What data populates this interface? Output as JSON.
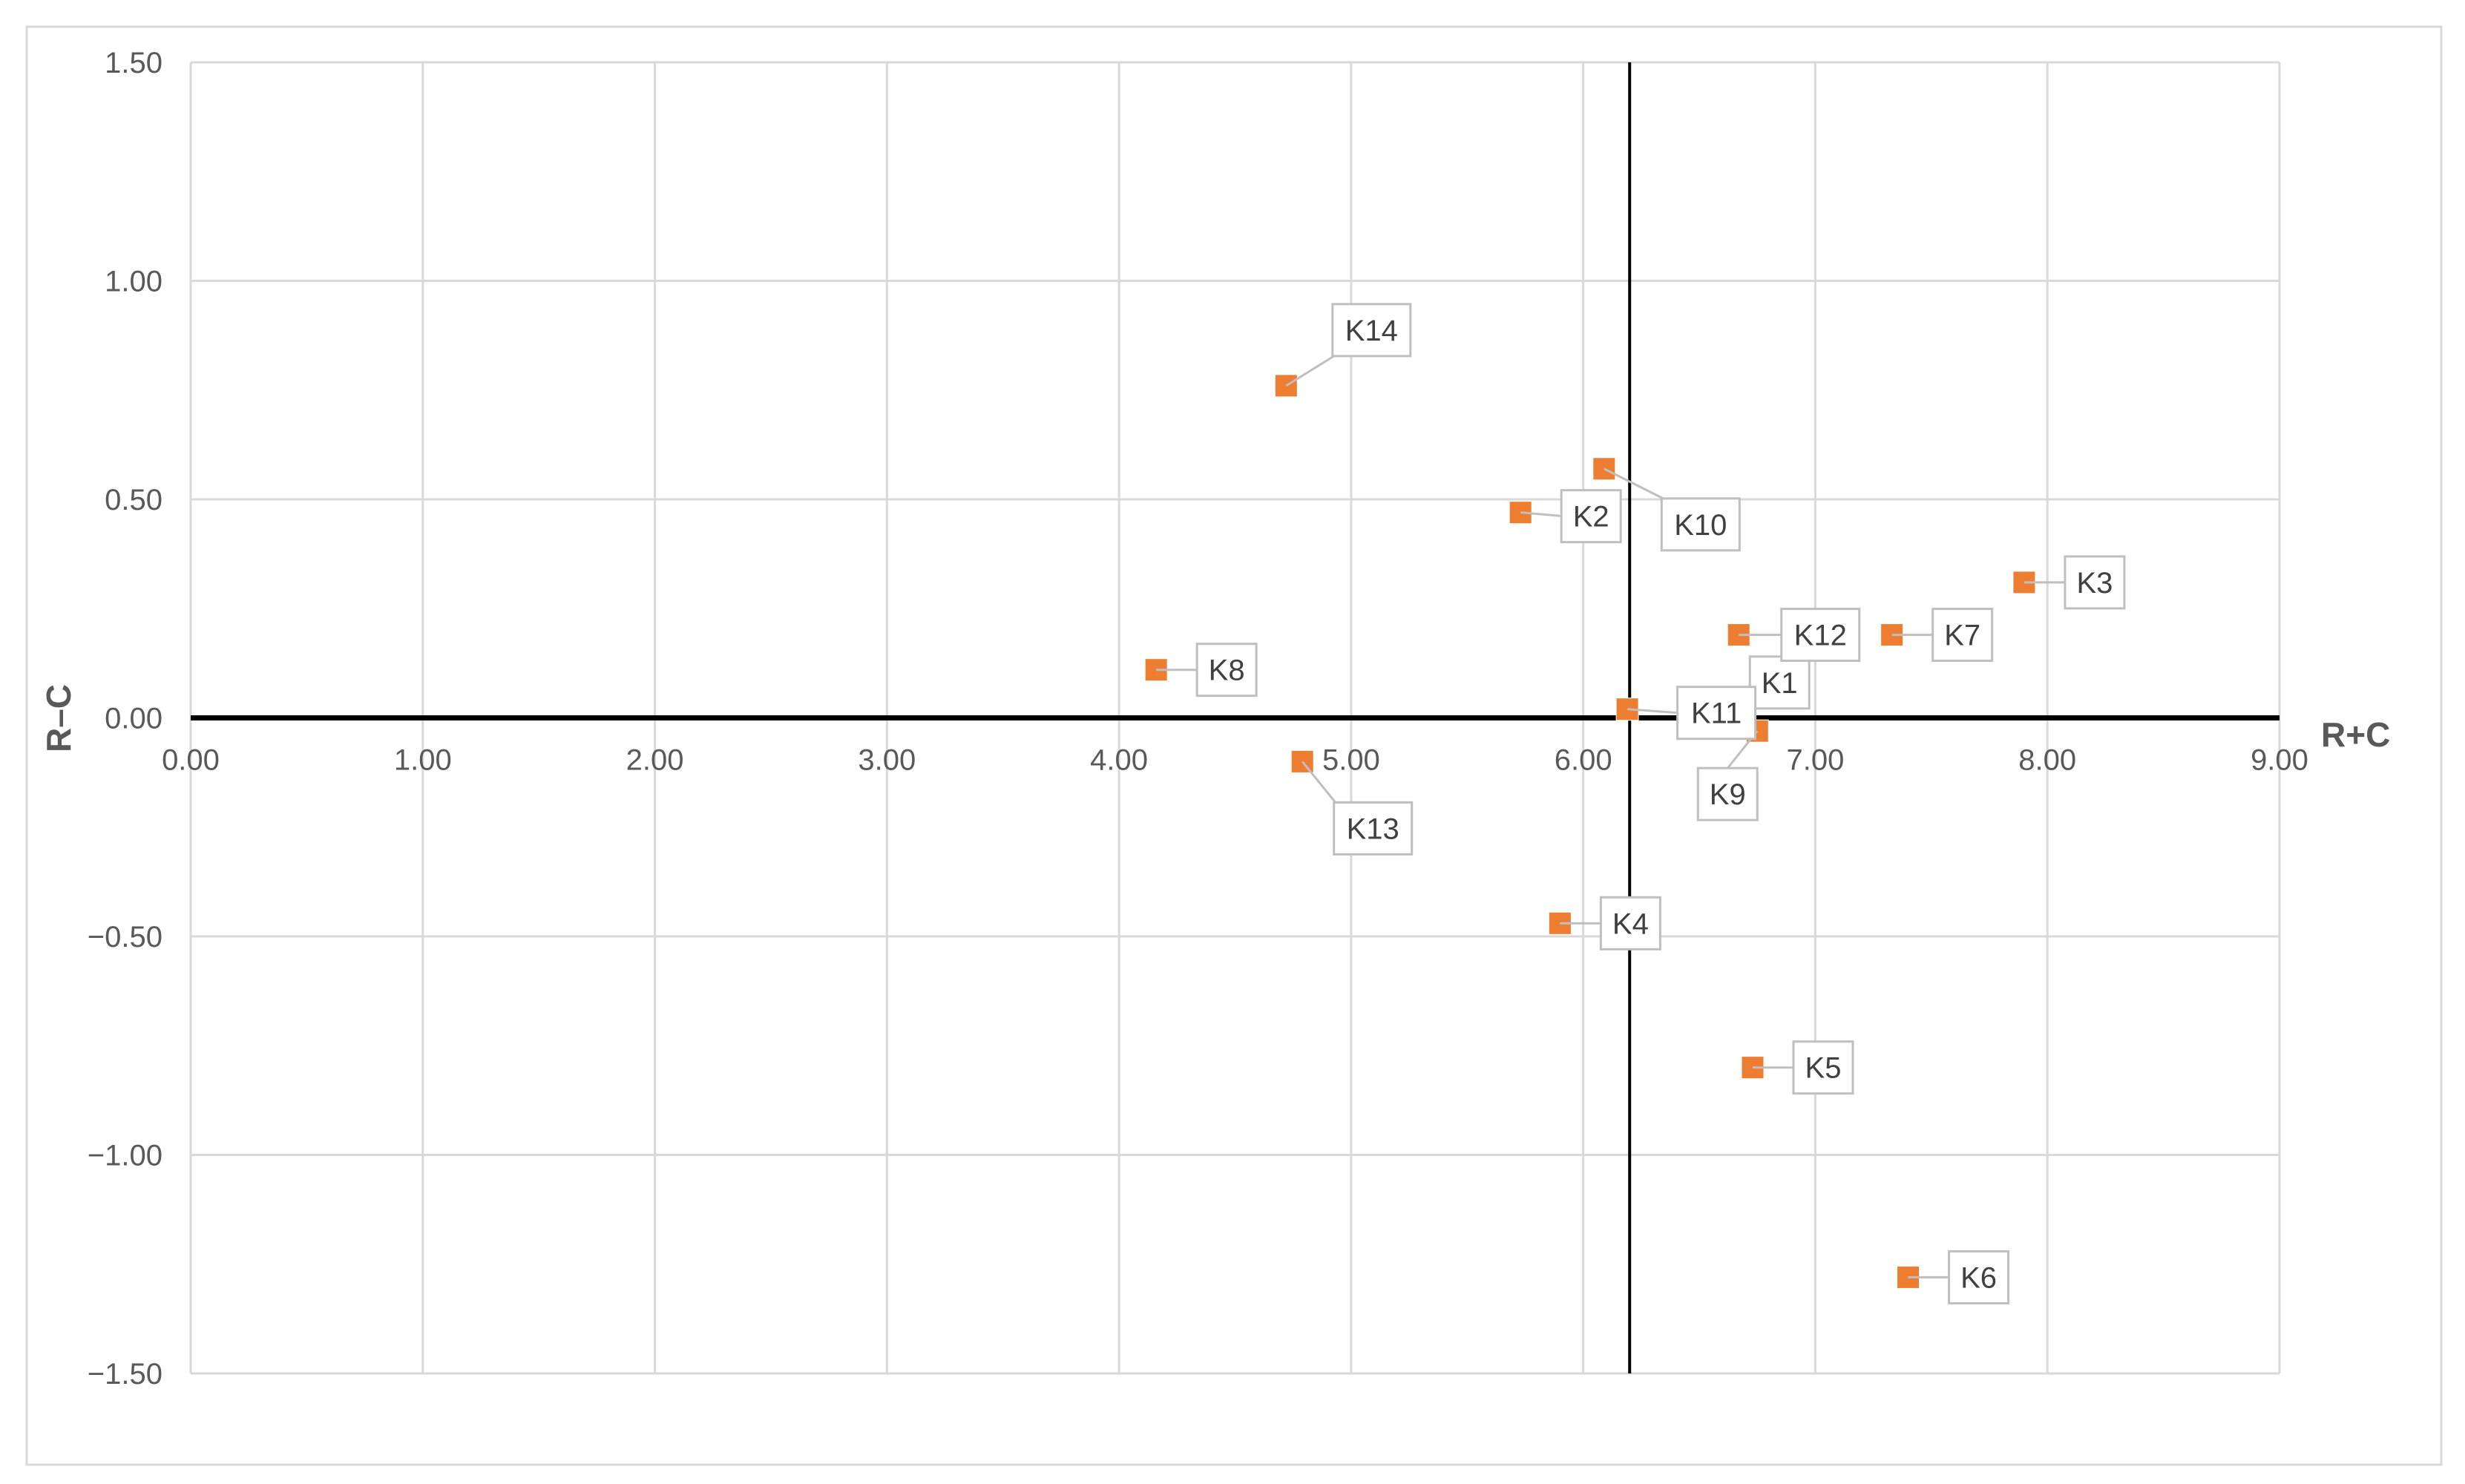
{
  "chart_data": {
    "type": "scatter",
    "title": "",
    "xlabel": "R+C",
    "ylabel": "R–C",
    "xlim": [
      0,
      9
    ],
    "ylim": [
      -1.5,
      1.5
    ],
    "x_ticks": [
      "0.00",
      "1.00",
      "2.00",
      "3.00",
      "4.00",
      "5.00",
      "6.00",
      "7.00",
      "8.00",
      "9.00"
    ],
    "y_ticks": [
      "1.50",
      "1.00",
      "0.50",
      "0.00",
      "−0.50",
      "−1.00",
      "−1.50"
    ],
    "grid": true,
    "reference_line_x": 6.2,
    "marker": "square",
    "marker_color": "#ED7D31",
    "points": [
      {
        "label": "K1",
        "x": 6.67,
        "y": 0.03
      },
      {
        "label": "K2",
        "x": 5.73,
        "y": 0.47
      },
      {
        "label": "K3",
        "x": 7.9,
        "y": 0.31
      },
      {
        "label": "K4",
        "x": 5.9,
        "y": -0.47
      },
      {
        "label": "K5",
        "x": 6.73,
        "y": -0.8
      },
      {
        "label": "K6",
        "x": 7.4,
        "y": -1.28
      },
      {
        "label": "K7",
        "x": 7.33,
        "y": 0.19
      },
      {
        "label": "K8",
        "x": 4.16,
        "y": 0.11
      },
      {
        "label": "K9",
        "x": 6.75,
        "y": -0.03
      },
      {
        "label": "K10",
        "x": 6.09,
        "y": 0.57
      },
      {
        "label": "K11",
        "x": 6.19,
        "y": 0.02
      },
      {
        "label": "K12",
        "x": 6.67,
        "y": 0.19
      },
      {
        "label": "K13",
        "x": 4.79,
        "y": -0.1
      },
      {
        "label": "K14",
        "x": 4.72,
        "y": 0.76
      }
    ]
  }
}
